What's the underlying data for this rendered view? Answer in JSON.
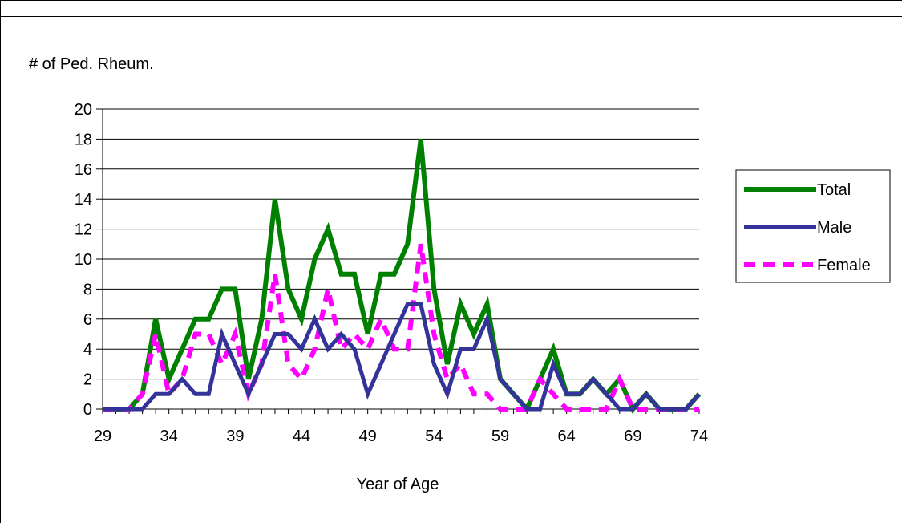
{
  "chart_data": {
    "type": "line",
    "ylabel": "# of Ped. Rheum.",
    "xlabel": "Year of Age",
    "ylim": [
      0,
      20
    ],
    "xlim": [
      29,
      74
    ],
    "y_ticks": [
      "0",
      "2",
      "4",
      "6",
      "8",
      "10",
      "12",
      "14",
      "16",
      "18",
      "20"
    ],
    "x_ticks": [
      "29",
      "34",
      "39",
      "44",
      "49",
      "54",
      "59",
      "64",
      "69",
      "74"
    ],
    "grid": "horizontal",
    "legend": "right",
    "x": [
      29,
      30,
      31,
      32,
      33,
      34,
      35,
      36,
      37,
      38,
      39,
      40,
      41,
      42,
      43,
      44,
      45,
      46,
      47,
      48,
      49,
      50,
      51,
      52,
      53,
      54,
      55,
      56,
      57,
      58,
      59,
      60,
      61,
      62,
      63,
      64,
      65,
      66,
      67,
      68,
      69,
      70,
      71,
      72,
      73,
      74
    ],
    "series": [
      {
        "name": "Total",
        "color": "#008000",
        "style": "solid",
        "values": [
          0,
          0,
          0,
          1,
          6,
          2,
          4,
          6,
          6,
          8,
          8,
          2,
          6,
          14,
          8,
          6,
          10,
          12,
          9,
          9,
          5,
          9,
          9,
          11,
          18,
          8,
          3,
          7,
          5,
          7,
          2,
          1,
          0,
          2,
          4,
          1,
          1,
          2,
          1,
          2,
          0,
          1,
          0,
          0,
          0,
          1
        ]
      },
      {
        "name": "Male",
        "color": "#333399",
        "style": "solid",
        "values": [
          0,
          0,
          0,
          0,
          1,
          1,
          2,
          1,
          1,
          5,
          3,
          1,
          3,
          5,
          5,
          4,
          6,
          4,
          5,
          4,
          1,
          3,
          5,
          7,
          7,
          3,
          1,
          4,
          4,
          6,
          2,
          1,
          0,
          0,
          3,
          1,
          1,
          2,
          1,
          0,
          0,
          1,
          0,
          0,
          0,
          1
        ]
      },
      {
        "name": "Female",
        "color": "#ff00ff",
        "style": "dashed",
        "values": [
          0,
          0,
          0,
          1,
          5,
          1,
          2,
          5,
          5,
          3,
          5,
          1,
          3,
          9,
          3,
          2,
          4,
          8,
          4,
          5,
          4,
          6,
          4,
          4,
          11,
          5,
          2,
          3,
          1,
          1,
          0,
          0,
          0,
          2,
          1,
          0,
          0,
          0,
          0,
          2,
          0,
          0,
          0,
          0,
          0,
          0
        ]
      }
    ]
  }
}
